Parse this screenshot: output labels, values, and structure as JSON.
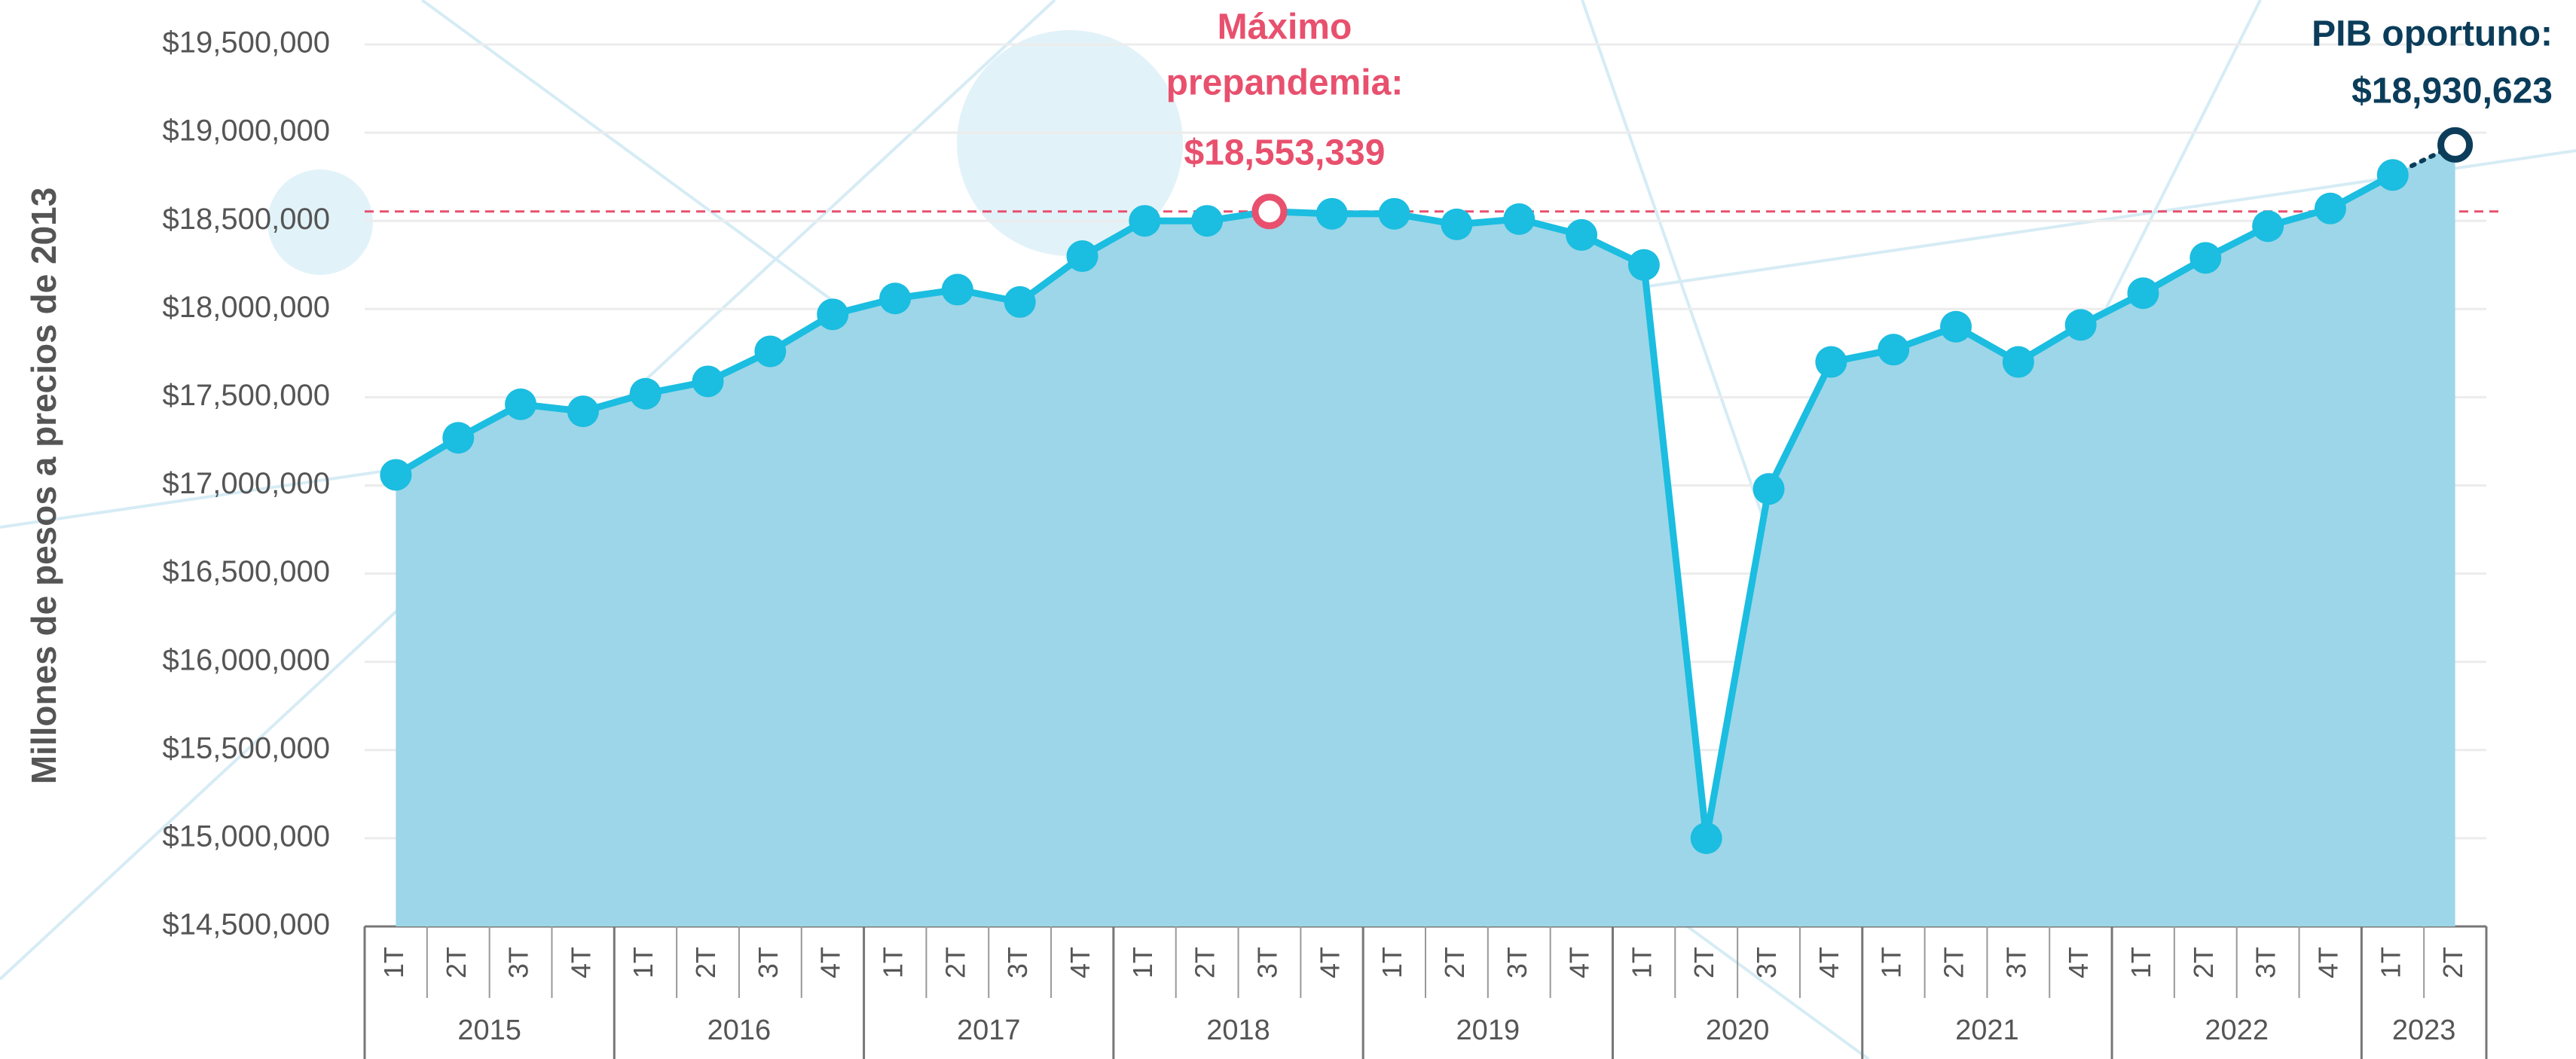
{
  "chart_data": {
    "type": "area-line",
    "y_label": "Millones de pesos a precios de 2013",
    "groups": [
      {
        "name": "2015",
        "quarters": [
          "1T",
          "2T",
          "3T",
          "4T"
        ]
      },
      {
        "name": "2016",
        "quarters": [
          "1T",
          "2T",
          "3T",
          "4T"
        ]
      },
      {
        "name": "2017",
        "quarters": [
          "1T",
          "2T",
          "3T",
          "4T"
        ]
      },
      {
        "name": "2018",
        "quarters": [
          "1T",
          "2T",
          "3T",
          "4T"
        ]
      },
      {
        "name": "2019",
        "quarters": [
          "1T",
          "2T",
          "3T",
          "4T"
        ]
      },
      {
        "name": "2020",
        "quarters": [
          "1T",
          "2T",
          "3T",
          "4T"
        ]
      },
      {
        "name": "2021",
        "quarters": [
          "1T",
          "2T",
          "3T",
          "4T"
        ]
      },
      {
        "name": "2022",
        "quarters": [
          "1T",
          "2T",
          "3T",
          "4T"
        ]
      },
      {
        "name": "2023",
        "quarters": [
          "1T",
          "2T"
        ]
      }
    ],
    "values": [
      17060000,
      17270000,
      17460000,
      17420000,
      17520000,
      17590000,
      17760000,
      17970000,
      18060000,
      18110000,
      18040000,
      18300000,
      18500000,
      18500000,
      18553339,
      18540000,
      18540000,
      18480000,
      18510000,
      18420000,
      18250000,
      15000000,
      16980000,
      17700000,
      17770000,
      17900000,
      17700000,
      17910000,
      18090000,
      18290000,
      18470000,
      18570000,
      18760000,
      18930623
    ],
    "color": "#1bbde0",
    "area_color": "#9dd6e8",
    "annotations": [
      {
        "lines": [
          "Máximo",
          "prepandemia:"
        ],
        "value": 18553339,
        "value_label": "$18,553,339",
        "color": "#e8506e"
      },
      {
        "lines": [
          "PIB oportuno:"
        ],
        "value": 18930623,
        "value_label": "$18,930,623",
        "color": "#0b3d5a"
      }
    ],
    "ylim": [
      14500000,
      19500000
    ],
    "yticks": [
      {
        "value": 14500000,
        "label": "$14,500,000"
      },
      {
        "value": 15000000,
        "label": "$15,000,000"
      },
      {
        "value": 15500000,
        "label": "$15,500,000"
      },
      {
        "value": 16000000,
        "label": "$16,000,000"
      },
      {
        "value": 16500000,
        "label": "$16,500,000"
      },
      {
        "value": 17000000,
        "label": "$17,000,000"
      },
      {
        "value": 17500000,
        "label": "$17,500,000"
      },
      {
        "value": 18000000,
        "label": "$18,000,000"
      },
      {
        "value": 18500000,
        "label": "$18,500,000"
      },
      {
        "value": 19000000,
        "label": "$19,000,000"
      },
      {
        "value": 19500000,
        "label": "$19,500,000"
      }
    ],
    "grid": true
  }
}
